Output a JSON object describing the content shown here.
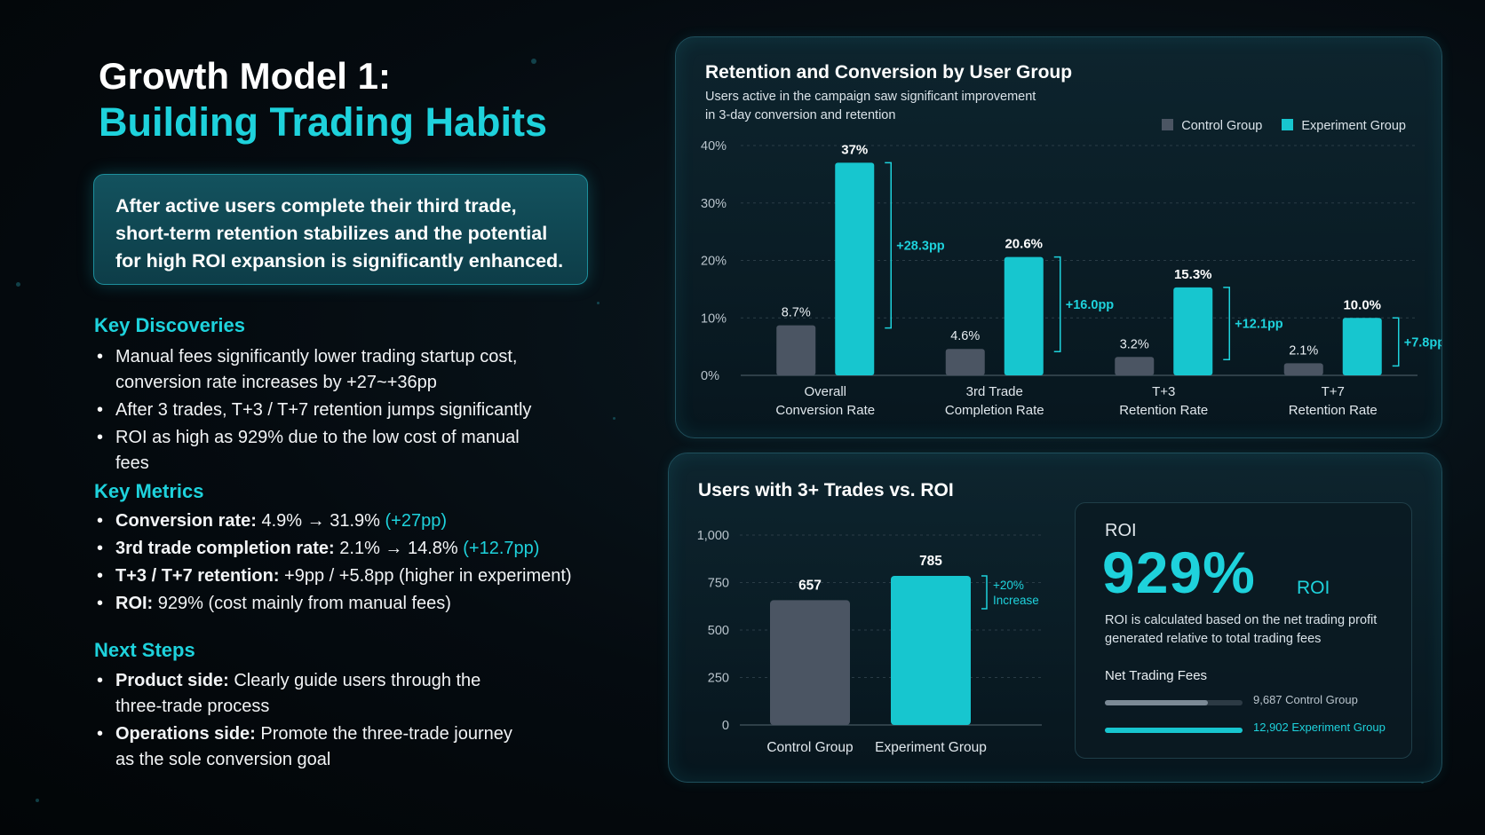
{
  "page": {
    "title_line1": "Growth Model 1:",
    "title_line2": "Building Trading Habits",
    "summary": "After active users complete their third trade, short-term retention stabilizes and the potential for high ROI expansion is significantly enhanced.",
    "key_discoveries": {
      "heading": "Key Discoveries",
      "items": [
        "Manual fees significantly lower trading startup cost, conversion rate increases by +27~+36pp",
        "After 3 trades, T+3 / T+7 retention jumps significantly",
        "ROI as high as 929% due to the low cost of manual fees"
      ]
    },
    "key_metrics": {
      "heading": "Key Metrics",
      "items": [
        {
          "label": "Conversion rate:",
          "value": "4.9% → 31.9%",
          "delta": "(+27pp)"
        },
        {
          "label": "3rd trade completion rate:",
          "value": "2.1% → 14.8%",
          "delta": "(+12.7pp)"
        },
        {
          "label": "T+3 / T+7 retention:",
          "value": "+9pp / +5.8pp  (higher in experiment)",
          "delta": ""
        },
        {
          "label": "ROI:",
          "value": "929%  (cost mainly from manual fees)",
          "delta": ""
        }
      ]
    },
    "next_steps": {
      "heading": "Next Steps",
      "items": [
        {
          "label": "Product side:",
          "text": "Clearly guide users through the three-trade process"
        },
        {
          "label": "Operations side:",
          "text": "Promote the three-trade journey as the sole conversion goal"
        }
      ]
    }
  },
  "colors": {
    "control": "#4b5563",
    "experiment": "#17c6cf",
    "accent": "#1ed2dc"
  },
  "chart_data": [
    {
      "type": "bar",
      "title": "Retention and Conversion by User Group",
      "subtitle_line1": "Users active in the campaign saw significant improvement",
      "subtitle_line2": "in 3-day conversion and retention",
      "legend": [
        "Control Group",
        "Experiment Group"
      ],
      "legend_position": "top-right",
      "categories": [
        [
          "Overall",
          "Conversion Rate"
        ],
        [
          "3rd Trade",
          "Completion Rate"
        ],
        [
          "T+3",
          "Retention Rate"
        ],
        [
          "T+7",
          "Retention Rate"
        ]
      ],
      "series": [
        {
          "name": "Control Group",
          "values": [
            8.7,
            4.6,
            3.2,
            2.1
          ],
          "labels": [
            "8.7%",
            "4.6%",
            "3.2%",
            "2.1%"
          ]
        },
        {
          "name": "Experiment Group",
          "values": [
            37,
            20.6,
            15.3,
            10.0
          ],
          "labels": [
            "37%",
            "20.6%",
            "15.3%",
            "10.0%"
          ]
        }
      ],
      "deltas": [
        "+28.3pp",
        "+16.0pp",
        "+12.1pp",
        "+7.8pp"
      ],
      "yticks": [
        "0%",
        "10%",
        "20%",
        "30%",
        "40%"
      ],
      "ylim": [
        0,
        40
      ],
      "grid": true
    },
    {
      "type": "bar",
      "title": "Users with 3+ Trades vs. ROI",
      "categories": [
        "Control Group",
        "Experiment Group"
      ],
      "values": [
        657,
        785
      ],
      "value_labels": [
        "657",
        "785"
      ],
      "annotation_line1": "+20%",
      "annotation_line2": "Increase",
      "yticks": [
        "0",
        "250",
        "500",
        "750",
        "1,000"
      ],
      "ylim": [
        0,
        1000
      ],
      "grid": true
    }
  ],
  "roi_panel": {
    "label": "ROI",
    "value": "929%",
    "unit": "ROI",
    "description": "ROI is calculated based on the net trading profit generated relative to total trading fees",
    "fees_heading": "Net Trading Fees",
    "fees": [
      {
        "label": "9,687 Control Group",
        "value": 9687,
        "max": 12902
      },
      {
        "label": "12,902 Experiment Group",
        "value": 12902,
        "max": 12902
      }
    ]
  }
}
